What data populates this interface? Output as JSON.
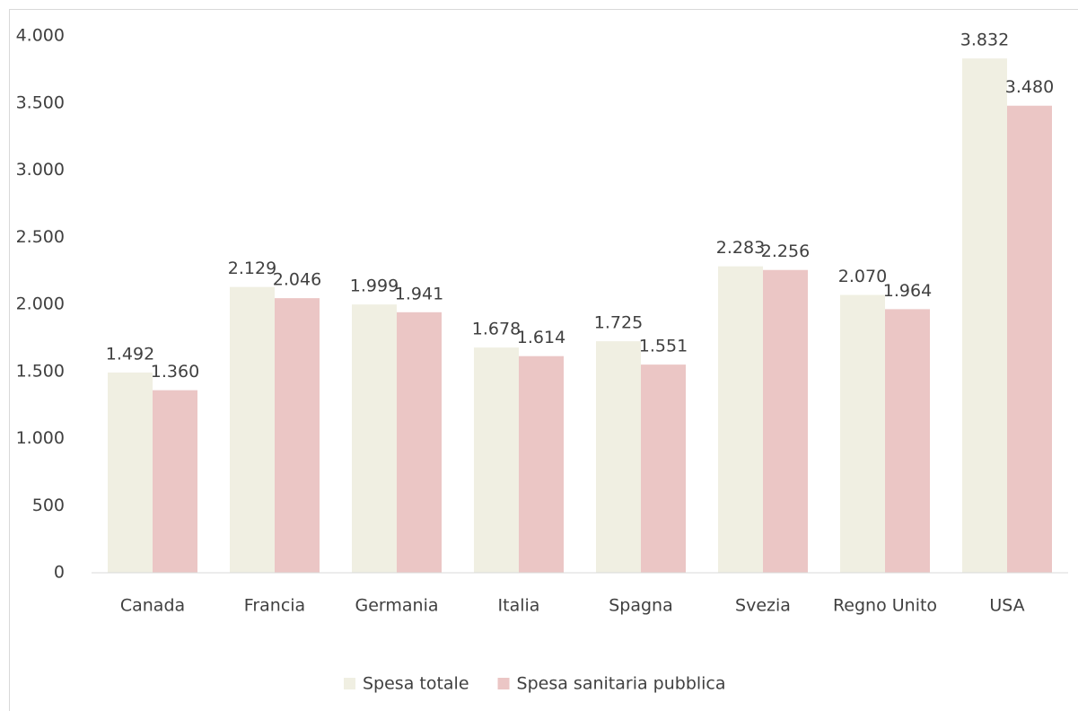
{
  "chart_data": {
    "type": "bar",
    "categories": [
      "Canada",
      "Francia",
      "Germania",
      "Italia",
      "Spagna",
      "Svezia",
      "Regno Unito",
      "USA"
    ],
    "series": [
      {
        "name": "Spesa totale",
        "color": "#f0efe2",
        "values": [
          1492,
          2129,
          1999,
          1678,
          1725,
          2283,
          2070,
          3832
        ],
        "value_labels": [
          "1.492",
          "2.129",
          "1.999",
          "1.678",
          "1.725",
          "2.283",
          "2.070",
          "3.832"
        ]
      },
      {
        "name": "Spesa sanitaria pubblica",
        "color": "#ebc6c5",
        "values": [
          1360,
          2046,
          1941,
          1614,
          1551,
          2256,
          1964,
          3480
        ],
        "value_labels": [
          "1.360",
          "2.046",
          "1.941",
          "1.614",
          "1.551",
          "2.256",
          "1.964",
          "3.480"
        ]
      }
    ],
    "ylim": [
      0,
      4000
    ],
    "yticks": [
      0,
      500,
      {
        "value": 1000,
        "label": "1.000"
      },
      {
        "value": 1500,
        "label": "1.500"
      },
      {
        "value": 2000,
        "label": "2.000"
      },
      {
        "value": 2500,
        "label": "2.500"
      },
      {
        "value": 3000,
        "label": "3.000"
      },
      {
        "value": 3500,
        "label": "3.500"
      },
      {
        "value": 4000,
        "label": "4.000"
      }
    ],
    "grid": false,
    "legend": "bottom"
  }
}
